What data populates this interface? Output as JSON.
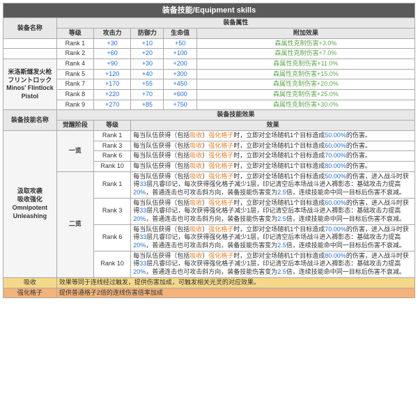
{
  "title": "装备技能/Equipment skills",
  "h": {
    "equipName": "装备名称",
    "equipAttr": "装备属性",
    "rank": "等级",
    "atk": "攻击力",
    "def": "防御力",
    "hp": "生命值",
    "extra": "附加效果",
    "skillName": "装备技能名称",
    "skillEff": "装备技能效果",
    "awaken": "觉醒阶段",
    "effect": "效果"
  },
  "equipNames": [
    "米洛斯燧发火枪",
    "フリントロック",
    "Minos' Flintlock Pistol"
  ],
  "skillNames": [
    "汲取攻袭",
    "吸收强化",
    "Omnipotent Unleashing"
  ],
  "stats": [
    {
      "rank": "Rank 1",
      "atk": "+30",
      "def": "+10",
      "hp": "+50",
      "ex": "森属性克制伤害+3.0%"
    },
    {
      "rank": "Rank 2",
      "atk": "+60",
      "def": "+20",
      "hp": "+100",
      "ex": "森属性克制伤害+7.0%"
    },
    {
      "rank": "Rank 4",
      "atk": "+90",
      "def": "+30",
      "hp": "+200",
      "ex": "森属性克制伤害+11.0%"
    },
    {
      "rank": "Rank 5",
      "atk": "+120",
      "def": "+40",
      "hp": "+300",
      "ex": "森属性克制伤害+15.0%"
    },
    {
      "rank": "Rank 7",
      "atk": "+170",
      "def": "+55",
      "hp": "+450",
      "ex": "森属性克制伤害+20.0%"
    },
    {
      "rank": "Rank 8",
      "atk": "+220",
      "def": "+70",
      "hp": "+600",
      "ex": "森属性克制伤害+25.0%"
    },
    {
      "rank": "Rank 9",
      "atk": "+270",
      "def": "+85",
      "hp": "+750",
      "ex": "森属性克制伤害+30.0%"
    }
  ],
  "awaken1": "一览",
  "awaken2": "二览",
  "s1": [
    {
      "rank": "Rank 1",
      "p": "50.00%"
    },
    {
      "rank": "Rank 3",
      "p": "60.00%"
    },
    {
      "rank": "Rank 6",
      "p": "70.00%"
    },
    {
      "rank": "Rank 10",
      "p": "80.00%"
    }
  ],
  "s2": [
    {
      "rank": "Rank 1",
      "p": "50.00%",
      "p2": "50.00%"
    },
    {
      "rank": "Rank 3",
      "p": "60.00%",
      "p2": "60.00%"
    },
    {
      "rank": "Rank 6",
      "p": "70.00%",
      "p2": "70.00%"
    },
    {
      "rank": "Rank 10",
      "p": "80.00%",
      "p2": "80.00%"
    }
  ],
  "txt": {
    "pre": "每当队伍获得（包括",
    "absorb": "吸收",
    "mid1": "）",
    "boost": "强化格子",
    "mid2": "时，立即对全场随机1个目标造成",
    "post1": "的伤害。",
    "line2a": "的伤害，进入战斗时获得",
    "n33": "33",
    "line2b": "层凡睿印记，每次获得强化格子减少1层，印记清空后本场战斗进入褥影态：基础攻击力提高",
    "n20": "20%",
    "line2c": "，普通连击也可攻击斜方向，装备技能伤害变为",
    "n25": "2.5",
    "line2d": "倍，连续技能命中同一目标后伤害不衰减。"
  },
  "absorb": {
    "label": "吸收",
    "desc": "效果等同于连线经过触发，提供伤害加成，可触发相关光灵的对应效果。"
  },
  "boostRow": {
    "label": "强化格子",
    "desc": "提供普通格子2倍的连线伤害倍率加成"
  }
}
